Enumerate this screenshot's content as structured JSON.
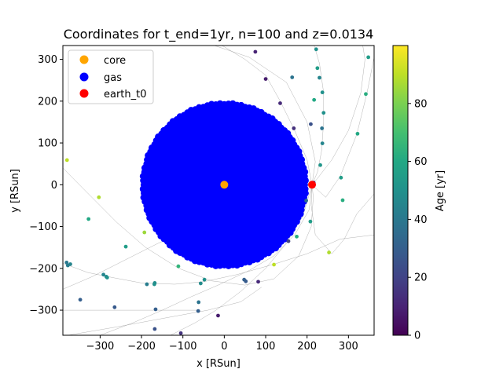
{
  "chart_data": {
    "type": "scatter",
    "title": "Coordinates for t_end=1yr, n=100 and z=0.0134",
    "xlabel": "x [RSun]",
    "ylabel": "y [RSun]",
    "xlim": [
      -390,
      362
    ],
    "ylim": [
      -360,
      333
    ],
    "xticks": [
      -300,
      -200,
      -100,
      0,
      100,
      200,
      300
    ],
    "yticks": [
      -300,
      -200,
      -100,
      0,
      100,
      200,
      300
    ],
    "legend_position": "top-left",
    "series": [
      {
        "name": "core",
        "color": "#ffa500",
        "points": [
          [
            0,
            0
          ]
        ]
      },
      {
        "name": "gas",
        "color": "#0000ff",
        "shape": "filled disk",
        "center": [
          0,
          0
        ],
        "radius": 200
      },
      {
        "name": "earth_t0",
        "color": "#ff0000",
        "points": [
          [
            212,
            0
          ]
        ]
      }
    ],
    "ejecta": {
      "color_by": "age",
      "points": [
        {
          "x": 75,
          "y": 318,
          "age": 10
        },
        {
          "x": 100,
          "y": 253,
          "age": 8
        },
        {
          "x": 135,
          "y": 195,
          "age": 12
        },
        {
          "x": 168,
          "y": 135,
          "age": 14
        },
        {
          "x": 164,
          "y": 257,
          "age": 38
        },
        {
          "x": 222,
          "y": 324,
          "age": 50
        },
        {
          "x": 225,
          "y": 279,
          "age": 55
        },
        {
          "x": 230,
          "y": 256,
          "age": 45
        },
        {
          "x": 237,
          "y": 221,
          "age": 50
        },
        {
          "x": 217,
          "y": 203,
          "age": 60
        },
        {
          "x": 240,
          "y": 172,
          "age": 50
        },
        {
          "x": 209,
          "y": 145,
          "age": 25
        },
        {
          "x": 236,
          "y": 135,
          "age": 38
        },
        {
          "x": 237,
          "y": 99,
          "age": 45
        },
        {
          "x": 232,
          "y": 47,
          "age": 52
        },
        {
          "x": 216,
          "y": 5,
          "age": 8
        },
        {
          "x": 212,
          "y": -3,
          "age": 12
        },
        {
          "x": 198,
          "y": -38,
          "age": 35
        },
        {
          "x": 208,
          "y": -88,
          "age": 55
        },
        {
          "x": 175,
          "y": -124,
          "age": 62
        },
        {
          "x": 155,
          "y": -135,
          "age": 20
        },
        {
          "x": 282,
          "y": 17,
          "age": 55
        },
        {
          "x": 286,
          "y": -37,
          "age": 62
        },
        {
          "x": 322,
          "y": 122,
          "age": 60
        },
        {
          "x": 342,
          "y": 217,
          "age": 62
        },
        {
          "x": 348,
          "y": 305,
          "age": 55
        },
        {
          "x": 253,
          "y": -162,
          "age": 88
        },
        {
          "x": 120,
          "y": -191,
          "age": 90
        },
        {
          "x": 82,
          "y": -232,
          "age": 12
        },
        {
          "x": 52,
          "y": -231,
          "age": 28
        },
        {
          "x": 48,
          "y": -227,
          "age": 30
        },
        {
          "x": -15,
          "y": -313,
          "age": 8
        },
        {
          "x": -62,
          "y": -281,
          "age": 38
        },
        {
          "x": -63,
          "y": -302,
          "age": 30
        },
        {
          "x": -105,
          "y": -355,
          "age": 15
        },
        {
          "x": -48,
          "y": -227,
          "age": 50
        },
        {
          "x": -57,
          "y": -236,
          "age": 48
        },
        {
          "x": -111,
          "y": -195,
          "age": 65
        },
        {
          "x": -168,
          "y": -235,
          "age": 48
        },
        {
          "x": -169,
          "y": -238,
          "age": 50
        },
        {
          "x": -187,
          "y": -238,
          "age": 42
        },
        {
          "x": -166,
          "y": -298,
          "age": 30
        },
        {
          "x": -168,
          "y": -345,
          "age": 25
        },
        {
          "x": -265,
          "y": -293,
          "age": 28
        },
        {
          "x": -348,
          "y": -275,
          "age": 30
        },
        {
          "x": -292,
          "y": -215,
          "age": 45
        },
        {
          "x": -285,
          "y": -220,
          "age": 48
        },
        {
          "x": -283,
          "y": -222,
          "age": 50
        },
        {
          "x": -238,
          "y": -148,
          "age": 55
        },
        {
          "x": -193,
          "y": -114,
          "age": 85
        },
        {
          "x": -328,
          "y": -82,
          "age": 60
        },
        {
          "x": -303,
          "y": -30,
          "age": 88
        },
        {
          "x": -380,
          "y": 59,
          "age": 90
        },
        {
          "x": -372,
          "y": -190,
          "age": 45
        },
        {
          "x": -378,
          "y": -193,
          "age": 42
        },
        {
          "x": -381,
          "y": -186,
          "age": 40
        }
      ]
    },
    "trajectories": [
      [
        [
          -50,
          355
        ],
        [
          0,
          330
        ],
        [
          50,
          300
        ],
        [
          100,
          262
        ],
        [
          135,
          200
        ],
        [
          170,
          130
        ],
        [
          200,
          60
        ],
        [
          212,
          0
        ]
      ],
      [
        [
          -200,
          375
        ],
        [
          -60,
          345
        ],
        [
          60,
          305
        ],
        [
          150,
          245
        ],
        [
          200,
          150
        ],
        [
          220,
          55
        ],
        [
          212,
          0
        ]
      ],
      [
        [
          215,
          340
        ],
        [
          230,
          290
        ],
        [
          240,
          220
        ],
        [
          240,
          150
        ],
        [
          235,
          80
        ],
        [
          225,
          30
        ],
        [
          212,
          0
        ]
      ],
      [
        [
          330,
          362
        ],
        [
          340,
          300
        ],
        [
          330,
          220
        ],
        [
          300,
          130
        ],
        [
          260,
          60
        ],
        [
          225,
          15
        ],
        [
          212,
          0
        ]
      ],
      [
        [
          362,
          305
        ],
        [
          345,
          220
        ],
        [
          320,
          120
        ],
        [
          280,
          20
        ],
        [
          245,
          -30
        ],
        [
          212,
          0
        ]
      ],
      [
        [
          -390,
          -188
        ],
        [
          -330,
          -210
        ],
        [
          -270,
          -222
        ],
        [
          -200,
          -235
        ],
        [
          -120,
          -238
        ],
        [
          -50,
          -232
        ],
        [
          30,
          -215
        ],
        [
          120,
          -190
        ],
        [
          200,
          -165
        ],
        [
          280,
          -130
        ],
        [
          362,
          -120
        ]
      ],
      [
        [
          -390,
          -250
        ],
        [
          -320,
          -220
        ],
        [
          -240,
          -180
        ],
        [
          -160,
          -140
        ],
        [
          -90,
          -110
        ],
        [
          -30,
          -90
        ],
        [
          30,
          -85
        ],
        [
          100,
          -80
        ],
        [
          160,
          -60
        ],
        [
          212,
          0
        ]
      ],
      [
        [
          -390,
          40
        ],
        [
          -330,
          -20
        ],
        [
          -260,
          -90
        ],
        [
          -190,
          -150
        ],
        [
          -110,
          -200
        ],
        [
          -30,
          -230
        ],
        [
          50,
          -240
        ],
        [
          120,
          -225
        ],
        [
          180,
          -170
        ],
        [
          210,
          -100
        ],
        [
          215,
          -30
        ],
        [
          212,
          0
        ]
      ],
      [
        [
          -300,
          -360
        ],
        [
          -220,
          -330
        ],
        [
          -150,
          -300
        ],
        [
          -80,
          -268
        ],
        [
          -10,
          -238
        ],
        [
          60,
          -205
        ],
        [
          120,
          -170
        ],
        [
          170,
          -120
        ],
        [
          205,
          -60
        ],
        [
          212,
          0
        ]
      ],
      [
        [
          -130,
          -360
        ],
        [
          -70,
          -330
        ],
        [
          -20,
          -300
        ],
        [
          40,
          -255
        ],
        [
          100,
          -200
        ],
        [
          150,
          -140
        ],
        [
          190,
          -75
        ],
        [
          212,
          0
        ]
      ],
      [
        [
          362,
          -22
        ],
        [
          320,
          -70
        ],
        [
          290,
          -130
        ],
        [
          260,
          -165
        ],
        [
          220,
          -120
        ],
        [
          210,
          -50
        ],
        [
          212,
          0
        ]
      ],
      [
        [
          -390,
          -300
        ],
        [
          -280,
          -300
        ],
        [
          -170,
          -300
        ],
        [
          -60,
          -300
        ]
      ],
      [
        [
          -390,
          -362
        ],
        [
          -260,
          -340
        ],
        [
          -150,
          -320
        ],
        [
          -40,
          -300
        ],
        [
          40,
          -280
        ],
        [
          90,
          -245
        ]
      ]
    ],
    "colorbar": {
      "label": "Age [yr]",
      "range": [
        0,
        100
      ],
      "ticks": [
        0,
        20,
        40,
        60,
        80
      ],
      "colormap": "viridis"
    }
  }
}
